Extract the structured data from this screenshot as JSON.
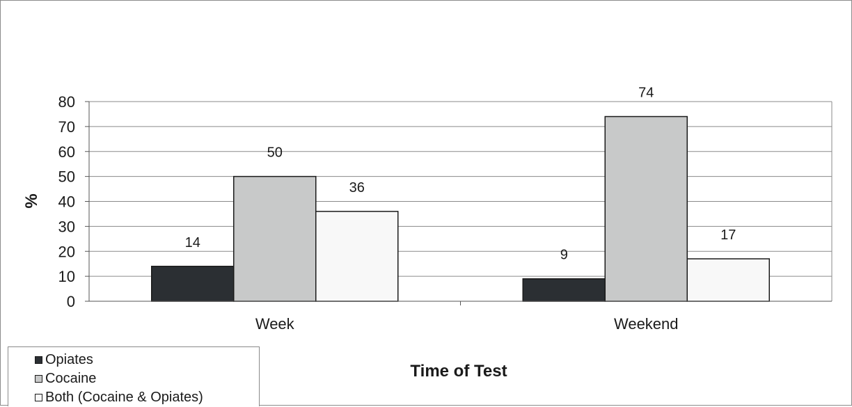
{
  "chart_data": {
    "type": "bar",
    "categories": [
      "Week",
      "Weekend"
    ],
    "series": [
      {
        "name": "Opiates",
        "values": [
          14,
          9
        ],
        "color": "#2b2f33"
      },
      {
        "name": "Cocaine",
        "values": [
          50,
          74
        ],
        "color": "#c8c9c9"
      },
      {
        "name": "Both (Cocaine & Opiates)",
        "values": [
          36,
          17
        ],
        "color": "#f8f8f8"
      }
    ],
    "title": "",
    "xlabel": "Time of Test",
    "ylabel": "%",
    "ylim": [
      0,
      80
    ],
    "yticks": [
      "0",
      "10",
      "20",
      "30",
      "40",
      "50",
      "60",
      "70",
      "80"
    ],
    "data_labels": [
      [
        "14",
        "9"
      ],
      [
        "50",
        "74"
      ],
      [
        "36",
        "17"
      ]
    ],
    "grid": true,
    "legend_position": "bottom-left"
  }
}
